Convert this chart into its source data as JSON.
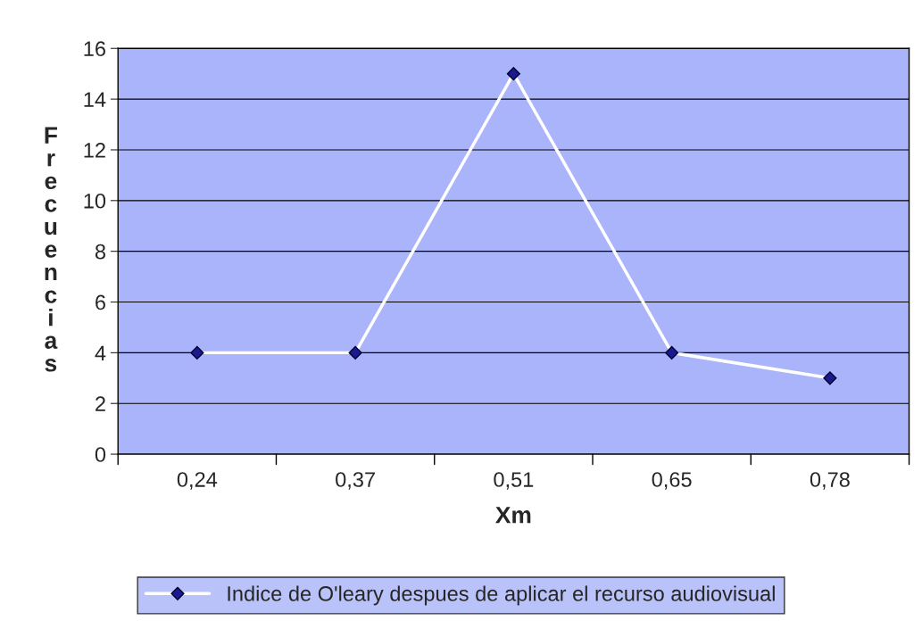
{
  "chart_data": {
    "type": "line",
    "xlabel": "Xm",
    "ylabel": "Frecuencias",
    "categories": [
      "0,24",
      "0,37",
      "0,51",
      "0,65",
      "0,78"
    ],
    "series": [
      {
        "name": "Indice de O'leary despues de aplicar el recurso audiovisual",
        "color": "#ffffff",
        "values": [
          4,
          4,
          15,
          4,
          3
        ]
      }
    ],
    "ylim": [
      0,
      16
    ],
    "yticks": [
      0,
      2,
      4,
      6,
      8,
      10,
      12,
      14,
      16
    ],
    "grid": "y",
    "legend": "bottom",
    "marker": "diamond",
    "line_style": "solid"
  }
}
